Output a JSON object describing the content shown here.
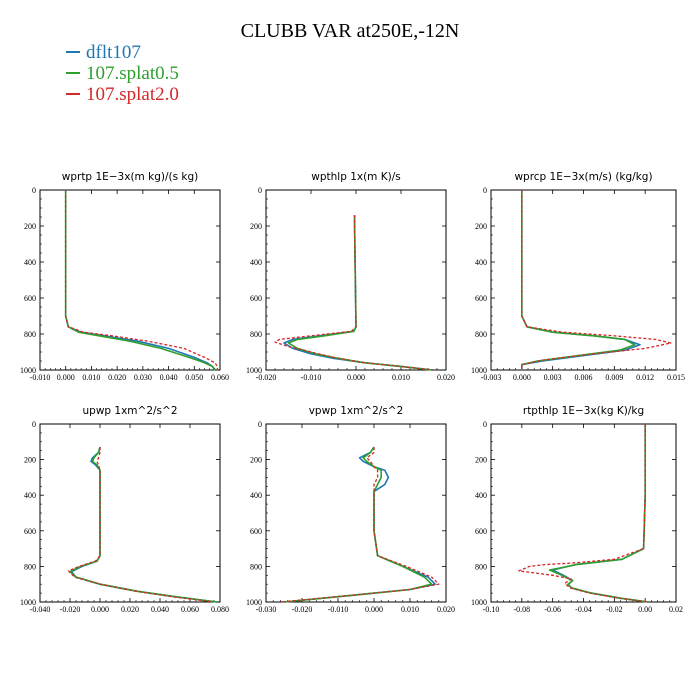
{
  "title": "CLUBB VAR at250E,-12N",
  "legend": [
    {
      "label": "dflt107",
      "color": "#1f77b4"
    },
    {
      "label": "107.splat0.5",
      "color": "#2ca02c"
    },
    {
      "label": "107.splat2.0",
      "color": "#d62728"
    }
  ],
  "chart_data": [
    {
      "type": "line",
      "title": "wprtp   1E−3x(m kg)/(s kg)",
      "xlim": [
        -0.01,
        0.06
      ],
      "ylim": [
        1000,
        0
      ],
      "xticks": [
        "-0.010",
        "0.000",
        "0.010",
        "0.020",
        "0.030",
        "0.040",
        "0.050",
        "0.060"
      ],
      "yticks": [
        "0",
        "200",
        "400",
        "600",
        "800",
        "1000"
      ],
      "series": [
        {
          "name": "dflt107",
          "x": [
            0.0,
            0.0,
            0.0,
            0.0,
            0.001,
            0.006,
            0.015,
            0.028,
            0.04,
            0.05,
            0.055,
            0.057,
            0.058
          ],
          "y": [
            0,
            200,
            400,
            700,
            760,
            790,
            810,
            840,
            880,
            930,
            960,
            980,
            1000
          ]
        },
        {
          "name": "107.splat0.5",
          "x": [
            0.0,
            0.0,
            0.0,
            0.0,
            0.001,
            0.005,
            0.013,
            0.025,
            0.037,
            0.048,
            0.054,
            0.057,
            0.058
          ],
          "y": [
            0,
            200,
            400,
            700,
            760,
            790,
            810,
            840,
            880,
            930,
            960,
            980,
            1000
          ]
        },
        {
          "name": "107.splat2.0",
          "x": [
            0.0,
            0.0,
            0.0,
            0.0,
            0.001,
            0.007,
            0.018,
            0.032,
            0.046,
            0.054,
            0.058,
            0.059,
            0.059
          ],
          "y": [
            0,
            200,
            400,
            700,
            760,
            790,
            810,
            840,
            880,
            930,
            960,
            980,
            1000
          ]
        }
      ]
    },
    {
      "type": "line",
      "title": "wpthlp   1x(m K)/s",
      "xlim": [
        -0.02,
        0.02
      ],
      "ylim": [
        1000,
        0
      ],
      "xticks": [
        "-0.020",
        "-0.010",
        "0.000",
        "0.010",
        "0.020"
      ],
      "yticks": [
        "0",
        "200",
        "400",
        "600",
        "800",
        "1000"
      ],
      "series": [
        {
          "name": "dflt107",
          "x": [
            -0.0003,
            -0.0003,
            -0.0002,
            -0.0001,
            0.0,
            -0.0005,
            -0.008,
            -0.014,
            -0.016,
            -0.014,
            -0.01,
            -0.005,
            0.002,
            0.01,
            0.017
          ],
          "y": [
            140,
            200,
            400,
            600,
            760,
            785,
            810,
            830,
            850,
            880,
            910,
            935,
            960,
            980,
            1000
          ]
        },
        {
          "name": "107.splat0.5",
          "x": [
            -0.0003,
            -0.0003,
            -0.0002,
            -0.0001,
            0.0,
            -0.0005,
            -0.007,
            -0.013,
            -0.015,
            -0.013,
            -0.009,
            -0.004,
            0.002,
            0.01,
            0.017
          ],
          "y": [
            140,
            200,
            400,
            600,
            760,
            785,
            810,
            830,
            850,
            880,
            910,
            935,
            960,
            980,
            1000
          ]
        },
        {
          "name": "107.splat2.0",
          "x": [
            -0.0003,
            -0.0003,
            -0.0002,
            -0.0001,
            0.0,
            -0.001,
            -0.01,
            -0.017,
            -0.018,
            -0.015,
            -0.01,
            -0.005,
            0.002,
            0.01,
            0.017
          ],
          "y": [
            140,
            200,
            400,
            600,
            760,
            785,
            810,
            830,
            845,
            870,
            900,
            930,
            960,
            980,
            1000
          ]
        }
      ]
    },
    {
      "type": "line",
      "title": "wprcp   1E−3x(m/s) (kg/kg)",
      "xlim": [
        -0.003,
        0.015
      ],
      "ylim": [
        1000,
        0
      ],
      "xticks": [
        "-0.003",
        "0.000",
        "0.003",
        "0.006",
        "0.009",
        "0.012",
        "0.015"
      ],
      "yticks": [
        "0",
        "200",
        "400",
        "600",
        "800",
        "1000"
      ],
      "series": [
        {
          "name": "dflt107",
          "x": [
            0.0,
            0.0,
            0.0,
            0.0,
            0.0005,
            0.003,
            0.007,
            0.01,
            0.0115,
            0.01,
            0.006,
            0.002,
            0.0,
            0.0
          ],
          "y": [
            0,
            200,
            400,
            700,
            760,
            790,
            810,
            830,
            860,
            890,
            920,
            950,
            970,
            1000
          ]
        },
        {
          "name": "107.splat0.5",
          "x": [
            0.0,
            0.0,
            0.0,
            0.0,
            0.0005,
            0.003,
            0.007,
            0.01,
            0.011,
            0.0095,
            0.0055,
            0.0015,
            0.0,
            0.0
          ],
          "y": [
            0,
            200,
            400,
            700,
            760,
            790,
            810,
            830,
            860,
            890,
            920,
            950,
            970,
            1000
          ]
        },
        {
          "name": "107.splat2.0",
          "x": [
            0.0,
            0.0,
            0.0,
            0.0,
            0.0005,
            0.004,
            0.009,
            0.013,
            0.0145,
            0.012,
            0.007,
            0.002,
            0.0,
            0.0
          ],
          "y": [
            0,
            200,
            400,
            700,
            760,
            790,
            810,
            830,
            850,
            880,
            910,
            945,
            970,
            1000
          ]
        }
      ]
    },
    {
      "type": "line",
      "title": "upwp   1xm^2/s^2",
      "xlim": [
        -0.04,
        0.08
      ],
      "ylim": [
        1000,
        0
      ],
      "xticks": [
        "-0.040",
        "-0.020",
        "0.000",
        "0.020",
        "0.040",
        "0.060",
        "0.080"
      ],
      "yticks": [
        "0",
        "200",
        "400",
        "600",
        "800",
        "1000"
      ],
      "series": [
        {
          "name": "dflt107",
          "x": [
            0.0,
            -0.001,
            -0.005,
            -0.006,
            -0.003,
            0.0,
            0.0,
            0.0,
            0.0,
            -0.002,
            -0.012,
            -0.019,
            -0.016,
            0.0,
            0.025,
            0.05,
            0.078
          ],
          "y": [
            130,
            160,
            190,
            210,
            230,
            260,
            400,
            600,
            740,
            770,
            800,
            830,
            860,
            900,
            940,
            970,
            1000
          ]
        },
        {
          "name": "107.splat0.5",
          "x": [
            0.0,
            -0.001,
            -0.004,
            -0.005,
            -0.002,
            0.0,
            0.0,
            0.0,
            0.0,
            -0.002,
            -0.013,
            -0.02,
            -0.016,
            0.0,
            0.025,
            0.05,
            0.078
          ],
          "y": [
            130,
            160,
            190,
            210,
            230,
            260,
            400,
            600,
            740,
            770,
            800,
            830,
            860,
            900,
            940,
            970,
            1000
          ]
        },
        {
          "name": "107.splat2.0",
          "x": [
            0.0,
            0.0,
            -0.001,
            -0.002,
            -0.001,
            0.0,
            0.0,
            0.0,
            0.0,
            -0.003,
            -0.014,
            -0.021,
            -0.017,
            0.0,
            0.024,
            0.048,
            0.076
          ],
          "y": [
            130,
            160,
            190,
            210,
            230,
            260,
            400,
            600,
            740,
            770,
            800,
            825,
            860,
            900,
            940,
            970,
            1000
          ]
        }
      ]
    },
    {
      "type": "line",
      "title": "vpwp   1xm^2/s^2",
      "xlim": [
        -0.03,
        0.02
      ],
      "ylim": [
        1000,
        0
      ],
      "xticks": [
        "-0.030",
        "-0.020",
        "-0.010",
        "0.000",
        "0.010",
        "0.020"
      ],
      "yticks": [
        "0",
        "200",
        "400",
        "600",
        "800",
        "1000"
      ],
      "series": [
        {
          "name": "dflt107",
          "x": [
            0.0,
            -0.001,
            -0.004,
            -0.003,
            0.0,
            0.003,
            0.004,
            0.003,
            0.0,
            0.0,
            0.0,
            0.001,
            0.008,
            0.015,
            0.017,
            0.01,
            -0.005,
            -0.025
          ],
          "y": [
            130,
            160,
            190,
            210,
            240,
            260,
            300,
            340,
            380,
            450,
            600,
            740,
            800,
            860,
            900,
            930,
            960,
            1000
          ]
        },
        {
          "name": "107.splat0.5",
          "x": [
            0.0,
            -0.001,
            -0.003,
            -0.002,
            0.0,
            0.002,
            0.002,
            0.001,
            0.0,
            0.0,
            0.0,
            0.001,
            0.008,
            0.014,
            0.016,
            0.01,
            -0.005,
            -0.025
          ],
          "y": [
            130,
            160,
            190,
            210,
            240,
            260,
            300,
            340,
            380,
            450,
            600,
            740,
            800,
            860,
            900,
            930,
            960,
            1000
          ]
        },
        {
          "name": "107.splat2.0",
          "x": [
            0.0,
            0.0,
            -0.002,
            -0.001,
            0.0,
            0.001,
            0.001,
            0.0,
            0.0,
            0.0,
            0.0,
            0.001,
            0.009,
            0.016,
            0.018,
            0.01,
            -0.005,
            -0.026
          ],
          "y": [
            130,
            160,
            190,
            210,
            240,
            260,
            300,
            340,
            380,
            450,
            600,
            740,
            800,
            860,
            900,
            930,
            960,
            1000
          ]
        }
      ]
    },
    {
      "type": "line",
      "title": "rtpthlp   1E−3x(kg K)/kg",
      "xlim": [
        -0.1,
        0.02
      ],
      "ylim": [
        1000,
        0
      ],
      "xticks": [
        "-0.10",
        "-0.08",
        "-0.06",
        "-0.04",
        "-0.02",
        "0.00",
        "0.02"
      ],
      "yticks": [
        "0",
        "200",
        "400",
        "600",
        "800",
        "1000"
      ],
      "series": [
        {
          "name": "dflt107",
          "x": [
            0.0,
            0.0,
            0.0,
            -0.001,
            -0.015,
            -0.035,
            -0.045,
            -0.05,
            -0.06,
            -0.053,
            -0.047,
            -0.05,
            -0.048,
            -0.035,
            -0.015,
            0.002
          ],
          "y": [
            0,
            200,
            400,
            700,
            760,
            780,
            790,
            800,
            820,
            850,
            880,
            900,
            920,
            950,
            980,
            1000
          ]
        },
        {
          "name": "107.splat0.5",
          "x": [
            0.0,
            0.0,
            0.0,
            -0.001,
            -0.015,
            -0.035,
            -0.045,
            -0.05,
            -0.062,
            -0.054,
            -0.047,
            -0.05,
            -0.048,
            -0.035,
            -0.015,
            0.002
          ],
          "y": [
            0,
            200,
            400,
            700,
            760,
            780,
            790,
            800,
            820,
            850,
            880,
            900,
            920,
            950,
            980,
            1000
          ]
        },
        {
          "name": "107.splat2.0",
          "x": [
            0.0,
            0.0,
            0.0,
            -0.001,
            -0.02,
            -0.045,
            -0.065,
            -0.075,
            -0.082,
            -0.06,
            -0.048,
            -0.052,
            -0.049,
            -0.036,
            -0.016,
            0.002
          ],
          "y": [
            0,
            200,
            400,
            700,
            760,
            780,
            790,
            800,
            825,
            850,
            870,
            895,
            920,
            950,
            980,
            1000
          ]
        }
      ]
    }
  ]
}
